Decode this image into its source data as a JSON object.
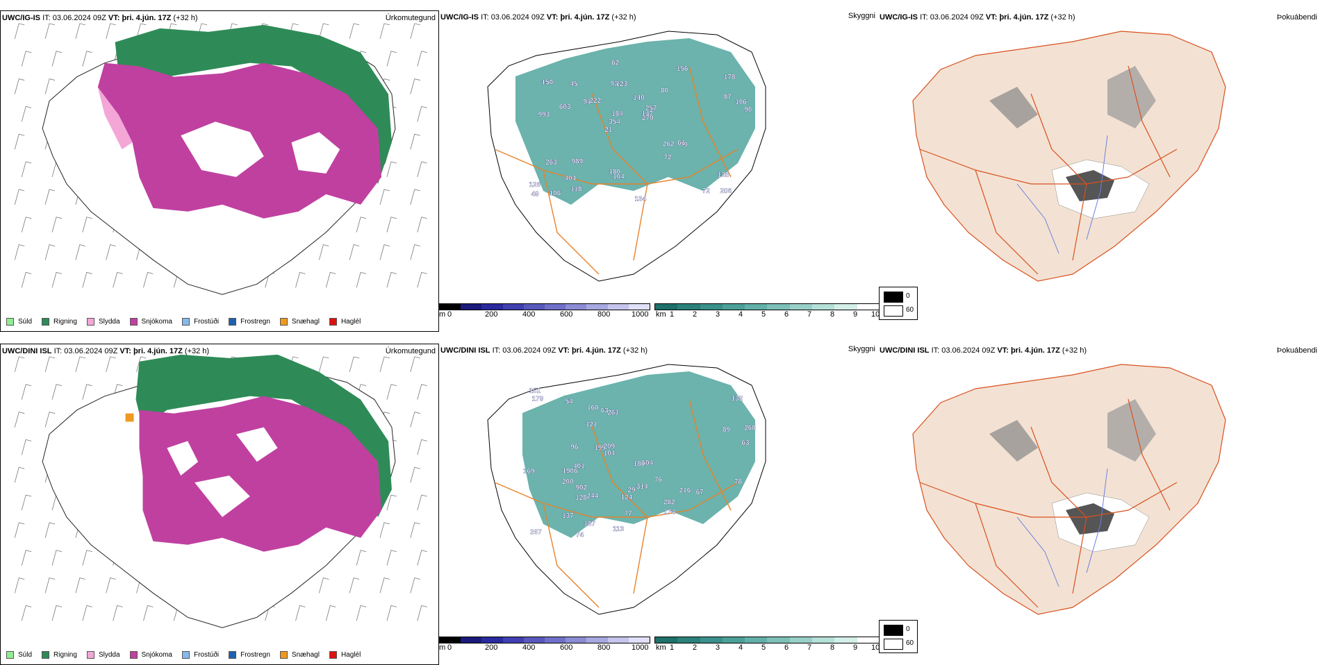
{
  "rows": [
    {
      "model": "UWC/IG-IS",
      "it_label": "IT:",
      "it_value": "03.06.2024 09Z",
      "vt_label": "VT:",
      "vt_value": "þri. 4.jún. 17Z",
      "lead": "(+32 h)",
      "panel_titles": [
        "Úrkomutegund",
        "Skyggni",
        "Þokuábendi"
      ]
    },
    {
      "model": "UWC/DINI ISL",
      "it_label": "IT:",
      "it_value": "03.06.2024 09Z",
      "vt_label": "VT:",
      "vt_value": "þri. 4.jún. 17Z",
      "lead": "(+32 h)",
      "panel_titles": [
        "Úrkomutegund",
        "Skyggni",
        "Þokuábendi"
      ]
    }
  ],
  "precip_legend": [
    {
      "label": "Súld",
      "color": "#90ee90"
    },
    {
      "label": "Rigning",
      "color": "#2e8b57"
    },
    {
      "label": "Slydda",
      "color": "#f4a6d7"
    },
    {
      "label": "Snjókoma",
      "color": "#c040a0"
    },
    {
      "label": "Frostúði",
      "color": "#87b8ec"
    },
    {
      "label": "Frostregn",
      "color": "#2060b0"
    },
    {
      "label": "Snæhagl",
      "color": "#ee9a20"
    },
    {
      "label": "Haglél",
      "color": "#e01010"
    }
  ],
  "height_scale": {
    "unit": "m",
    "ticks": [
      "0",
      "200",
      "400",
      "600",
      "800",
      "1000"
    ]
  },
  "vis_scale": {
    "unit": "km",
    "ticks": [
      "1",
      "2",
      "3",
      "4",
      "5",
      "6",
      "7",
      "8",
      "9",
      "10"
    ]
  },
  "fog_legend": [
    "0",
    "60"
  ],
  "cloud_base_labels_top": [
    "206",
    "993",
    "178",
    "21",
    "80",
    "106",
    "93",
    "140",
    "263",
    "222",
    "126",
    "404",
    "123",
    "257",
    "79",
    "150",
    "62",
    "90",
    "262",
    "87",
    "354",
    "180",
    "184",
    "45",
    "156",
    "989",
    "72",
    "135",
    "61",
    "134",
    "91",
    "603",
    "72",
    "118",
    "106",
    "147",
    "49",
    "104",
    "270"
  ],
  "cloud_base_labels_bottom": [
    "179",
    "151",
    "169",
    "132",
    "268",
    "282",
    "261",
    "244",
    "267",
    "216",
    "128",
    "504",
    "74",
    "200",
    "29",
    "199",
    "124",
    "137",
    "121",
    "209",
    "63",
    "77",
    "187",
    "401",
    "1906",
    "314",
    "902",
    "67",
    "113",
    "63",
    "76",
    "160",
    "89",
    "78",
    "186",
    "96",
    "54",
    "104",
    "174"
  ]
}
